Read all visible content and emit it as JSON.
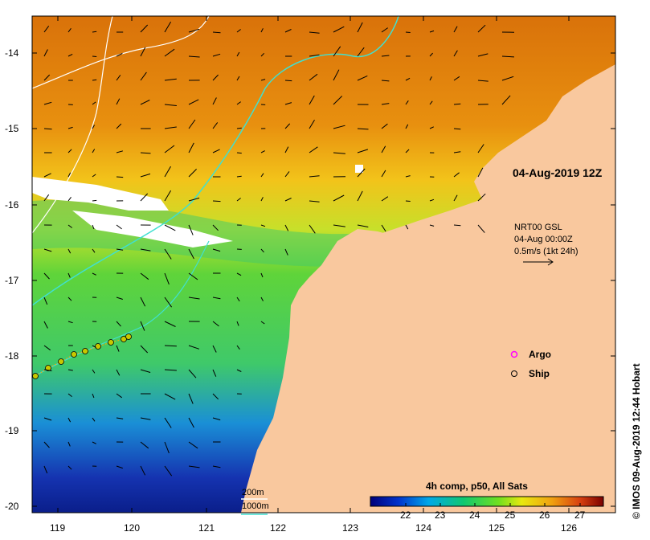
{
  "map": {
    "timestamp": "04-Aug-2019 12Z",
    "credit": "© IMOS 09-Aug-2019 12:44 Hobart",
    "x_ticks": [
      "119",
      "120",
      "121",
      "122",
      "123",
      "124",
      "125",
      "126"
    ],
    "y_ticks": [
      "-14",
      "-15",
      "-16",
      "-17",
      "-18",
      "-19",
      "-20"
    ]
  },
  "currents": {
    "source": "NRT00 GSL",
    "date": "04-Aug 00:00Z",
    "scale": "0.5m/s (1kt 24h)"
  },
  "markers": {
    "argo_label": "Argo",
    "ship_label": "Ship"
  },
  "isobaths": {
    "line1": "200m",
    "line2": "1000m"
  },
  "colorbar": {
    "title": "4h comp, p50, All Sats",
    "ticks": [
      "22",
      "23",
      "24",
      "25",
      "26",
      "27"
    ]
  },
  "colors": {
    "land": "#f9c89e",
    "isobath_200": "#ffffff",
    "isobath_1000": "#40e0d0",
    "argo": "#ff00ff"
  }
}
